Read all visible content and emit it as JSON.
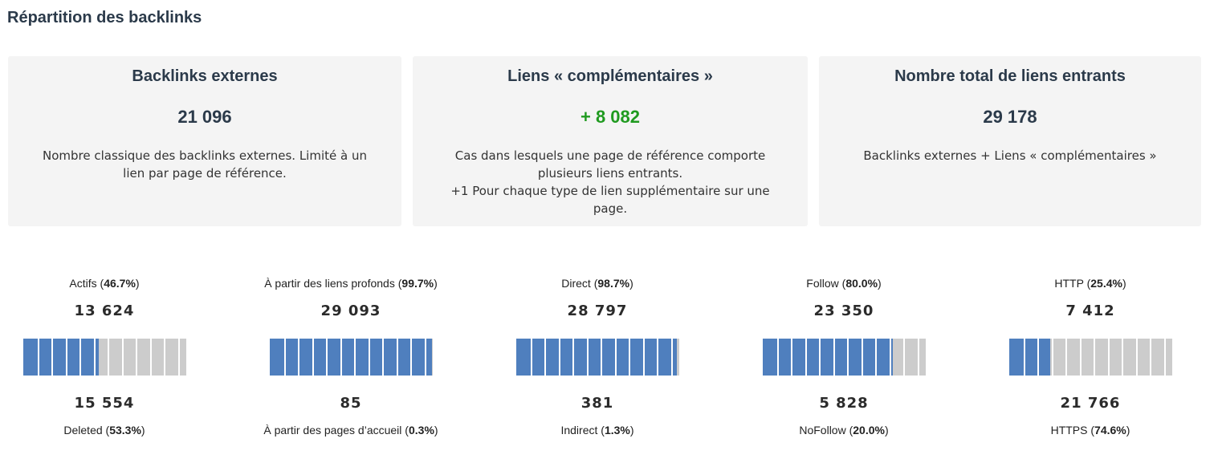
{
  "title": "Répartition des backlinks",
  "cards": [
    {
      "title": "Backlinks externes",
      "value": "21 096",
      "positive": false,
      "description": "Nombre classique des backlinks externes. Limité à un\nlien par page de référence."
    },
    {
      "title": "Liens « complémentaires »",
      "value": "+ 8 082",
      "positive": true,
      "description": "Cas dans lesquels une page de référence comporte\nplusieurs liens entrants.\n+1 Pour chaque type de lien supplémentaire sur une\npage."
    },
    {
      "title": "Nombre total de liens entrants",
      "value": "29 178",
      "positive": false,
      "description": "Backlinks externes + Liens « complémentaires »"
    }
  ],
  "stats": [
    {
      "top_label": "Actifs",
      "top_pct": "46.7%",
      "top_value": "13 624",
      "bottom_value": "15 554",
      "bottom_label": "Deleted",
      "bottom_pct": "53.3%",
      "fill_fraction": 0.467
    },
    {
      "top_label": "À partir des liens profonds",
      "top_pct": "99.7%",
      "top_value": "29 093",
      "bottom_value": "85",
      "bottom_label": "À partir des pages d’accueil",
      "bottom_pct": "0.3%",
      "fill_fraction": 0.997
    },
    {
      "top_label": "Direct",
      "top_pct": "98.7%",
      "top_value": "28 797",
      "bottom_value": "381",
      "bottom_label": "Indirect",
      "bottom_pct": "1.3%",
      "fill_fraction": 0.987
    },
    {
      "top_label": "Follow",
      "top_pct": "80.0%",
      "top_value": "23 350",
      "bottom_value": "5 828",
      "bottom_label": "NoFollow",
      "bottom_pct": "20.0%",
      "fill_fraction": 0.8
    },
    {
      "top_label": "HTTP",
      "top_pct": "25.4%",
      "top_value": "7 412",
      "bottom_value": "21 766",
      "bottom_label": "HTTPS",
      "bottom_pct": "74.6%",
      "fill_fraction": 0.254
    }
  ],
  "colors": {
    "accent_fill": "#4f7fbe",
    "bar_empty": "#cccccc",
    "positive": "#1f9a1f",
    "heading": "#2b3a4a",
    "card_bg": "#f4f4f4"
  }
}
